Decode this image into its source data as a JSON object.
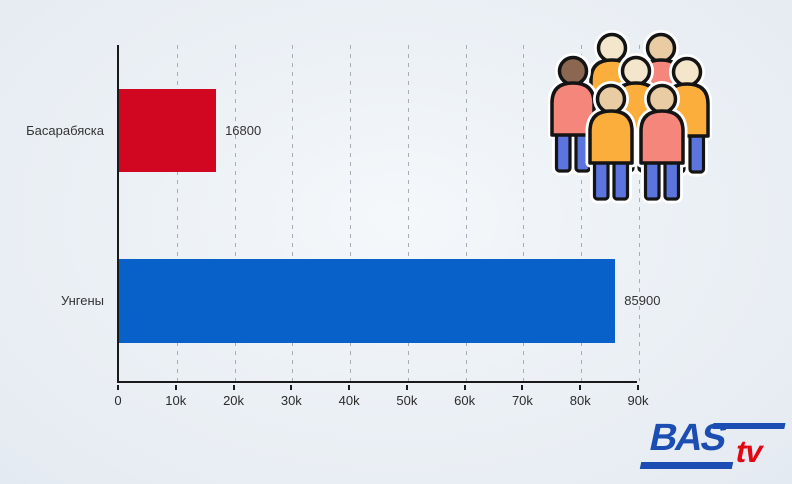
{
  "chart_data": {
    "type": "bar",
    "orientation": "horizontal",
    "title": "",
    "categories": [
      "Басарабяска",
      "Унгены"
    ],
    "values": [
      16800,
      85900
    ],
    "value_labels": [
      "16800",
      "85900"
    ],
    "bar_colors": [
      "#d10722",
      "#0861c8"
    ],
    "xlim": [
      0,
      90000
    ],
    "x_ticks": [
      {
        "label": "0",
        "value": 0
      },
      {
        "label": "10k",
        "value": 10000
      },
      {
        "label": "20k",
        "value": 20000
      },
      {
        "label": "30k",
        "value": 30000
      },
      {
        "label": "40k",
        "value": 40000
      },
      {
        "label": "50k",
        "value": 50000
      },
      {
        "label": "60k",
        "value": 60000
      },
      {
        "label": "70k",
        "value": 70000
      },
      {
        "label": "80k",
        "value": 80000
      },
      {
        "label": "90k",
        "value": 90000
      }
    ],
    "grid": {
      "direction": "vertical",
      "style": "dashed",
      "color": "#a6adb6"
    },
    "axis_color": "#1a1a1a",
    "legend_position": "none"
  },
  "logo": {
    "main": "BAS",
    "sub": "tv",
    "main_color": "#1c4db2",
    "sub_color": "#e30613"
  },
  "icons": {
    "people_group": "group-of-seven-people-icon"
  },
  "colors": {
    "background": "#e9eef4",
    "text": "#333333"
  }
}
